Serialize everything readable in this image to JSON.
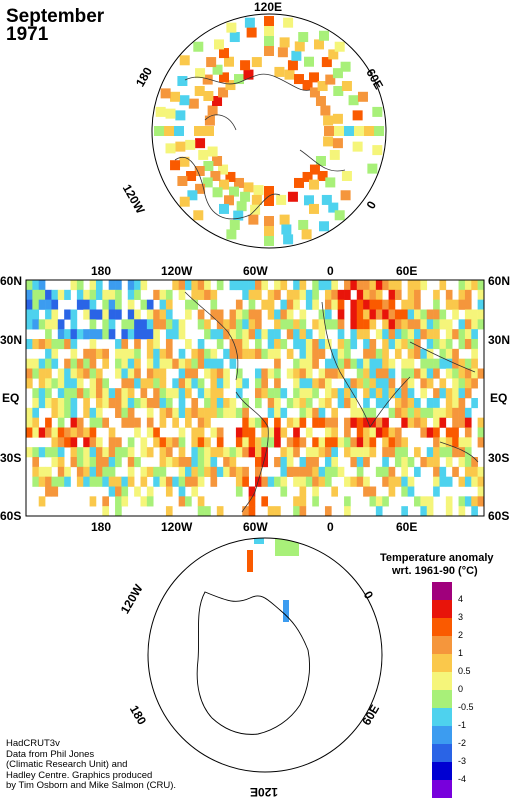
{
  "title": {
    "month": "September",
    "year": "1971"
  },
  "north_polar": {
    "labels": [
      "120E",
      "60E",
      "0",
      "120W",
      "180"
    ]
  },
  "south_polar": {
    "labels": [
      "120W",
      "0",
      "180",
      "60E",
      "120E"
    ]
  },
  "main_map": {
    "lon_labels_top": [
      "180",
      "120W",
      "60W",
      "0",
      "60E"
    ],
    "lon_labels_bottom": [
      "180",
      "120W",
      "60W",
      "0",
      "60E"
    ],
    "lat_labels": [
      "60N",
      "30N",
      "EQ",
      "30S",
      "60S"
    ]
  },
  "legend": {
    "title_line1": "Temperature anomaly",
    "title_line2": "wrt. 1961-90  (°C)",
    "levels": [
      "4",
      "3",
      "2",
      "1",
      "0.5",
      "0",
      "-0.5",
      "-1",
      "-2",
      "-3",
      "-4"
    ],
    "colors": [
      "#a0007c",
      "#e8140a",
      "#fa5a00",
      "#f5963c",
      "#fac84b",
      "#f5f57a",
      "#a8f079",
      "#4ed2ee",
      "#3c9cf0",
      "#2a64e6",
      "#0000d2",
      "#7800dc"
    ]
  },
  "credits": {
    "line1": "HadCRUT3v",
    "line2": "Data from Phil Jones",
    "line3": "(Climatic Research Unit) and",
    "line4": "Hadley Centre.  Graphics produced",
    "line5": "by Tim Osborn and Mike Salmon (CRU)."
  }
}
